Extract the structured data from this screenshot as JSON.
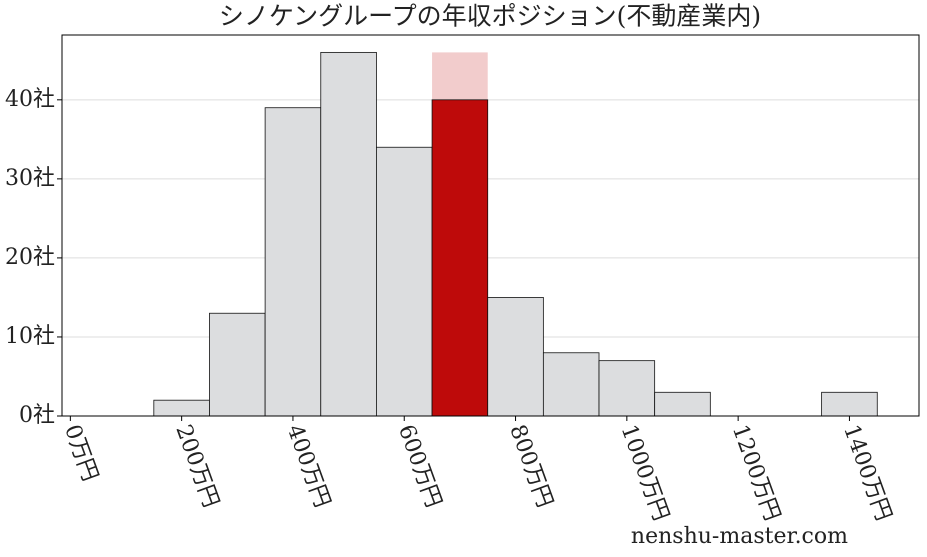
{
  "chart_data": {
    "type": "histogram",
    "title": "シノケングループの年収ポジション(不動産業内)",
    "bins": [
      150,
      250,
      350,
      450,
      550,
      650,
      750,
      850,
      950,
      1050,
      1150,
      1250,
      1350,
      1450
    ],
    "counts": [
      2,
      13,
      39,
      46,
      34,
      40,
      15,
      8,
      7,
      3,
      0,
      0,
      3
    ],
    "color": "#dcdddf",
    "highlight": {
      "bin": 5,
      "color": "#be0a0a",
      "top": 46,
      "top_color": "#f2cccc"
    },
    "xlim": [
      -15,
      1525
    ],
    "xticks": [
      {
        "value": 0,
        "label": "0万円"
      },
      {
        "value": 200,
        "label": "200万円"
      },
      {
        "value": 400,
        "label": "400万円"
      },
      {
        "value": 600,
        "label": "600万円"
      },
      {
        "value": 800,
        "label": "800万円"
      },
      {
        "value": 1000,
        "label": "1000万円"
      },
      {
        "value": 1200,
        "label": "1200万円"
      },
      {
        "value": 1400,
        "label": "1400万円"
      }
    ],
    "ylim": [
      0,
      48.2
    ],
    "yticks": [
      {
        "value": 0,
        "label": "0社"
      },
      {
        "value": 10,
        "label": "10社"
      },
      {
        "value": 20,
        "label": "20社"
      },
      {
        "value": 30,
        "label": "30社"
      },
      {
        "value": 40,
        "label": "40社"
      }
    ],
    "grid": true,
    "watermark": "nenshu-master.com"
  }
}
